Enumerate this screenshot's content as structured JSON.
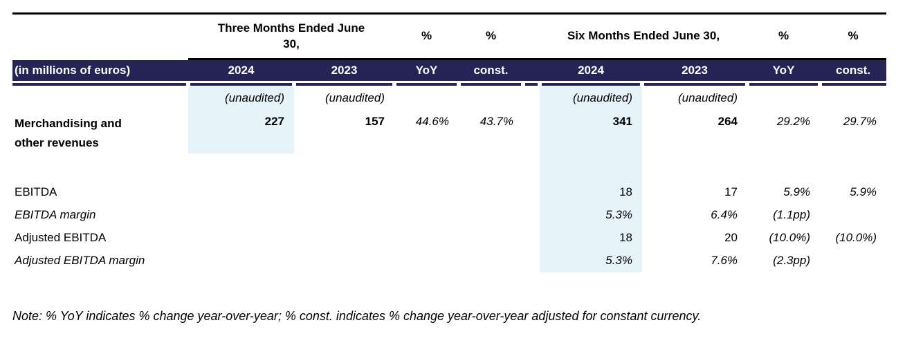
{
  "colors": {
    "header_bar": "#252457",
    "highlight_column": "#e7f3fa",
    "text": "#000000"
  },
  "table": {
    "row_label_header": "(in millions of euros)",
    "group_headers": {
      "three_months": "Three Months Ended June 30,",
      "six_months": "Six Months Ended June 30,"
    },
    "percent_symbol": "%",
    "columns": [
      "2024",
      "2023",
      "YoY",
      "const.",
      "2024",
      "2023",
      "YoY",
      "const."
    ],
    "unaudited_label": "(unaudited)",
    "rows": [
      {
        "label": "Merchandising and other revenues",
        "cells": [
          "227",
          "157",
          "44.6%",
          "43.7%",
          "341",
          "264",
          "29.2%",
          "29.7%"
        ]
      },
      {
        "label": "EBITDA",
        "cells": [
          "",
          "",
          "",
          "",
          "18",
          "17",
          "5.9%",
          "5.9%"
        ]
      },
      {
        "label": "EBITDA margin",
        "cells": [
          "",
          "",
          "",
          "",
          "5.3%",
          "6.4%",
          "(1.1pp)",
          ""
        ]
      },
      {
        "label": "Adjusted EBITDA",
        "cells": [
          "",
          "",
          "",
          "",
          "18",
          "20",
          "(10.0%)",
          "(10.0%)"
        ]
      },
      {
        "label": "Adjusted EBITDA margin",
        "cells": [
          "",
          "",
          "",
          "",
          "5.3%",
          "7.6%",
          "(2.3pp)",
          ""
        ]
      }
    ]
  },
  "note": "Note: % YoY indicates % change year-over-year; % const. indicates % change year-over-year adjusted for constant currency."
}
